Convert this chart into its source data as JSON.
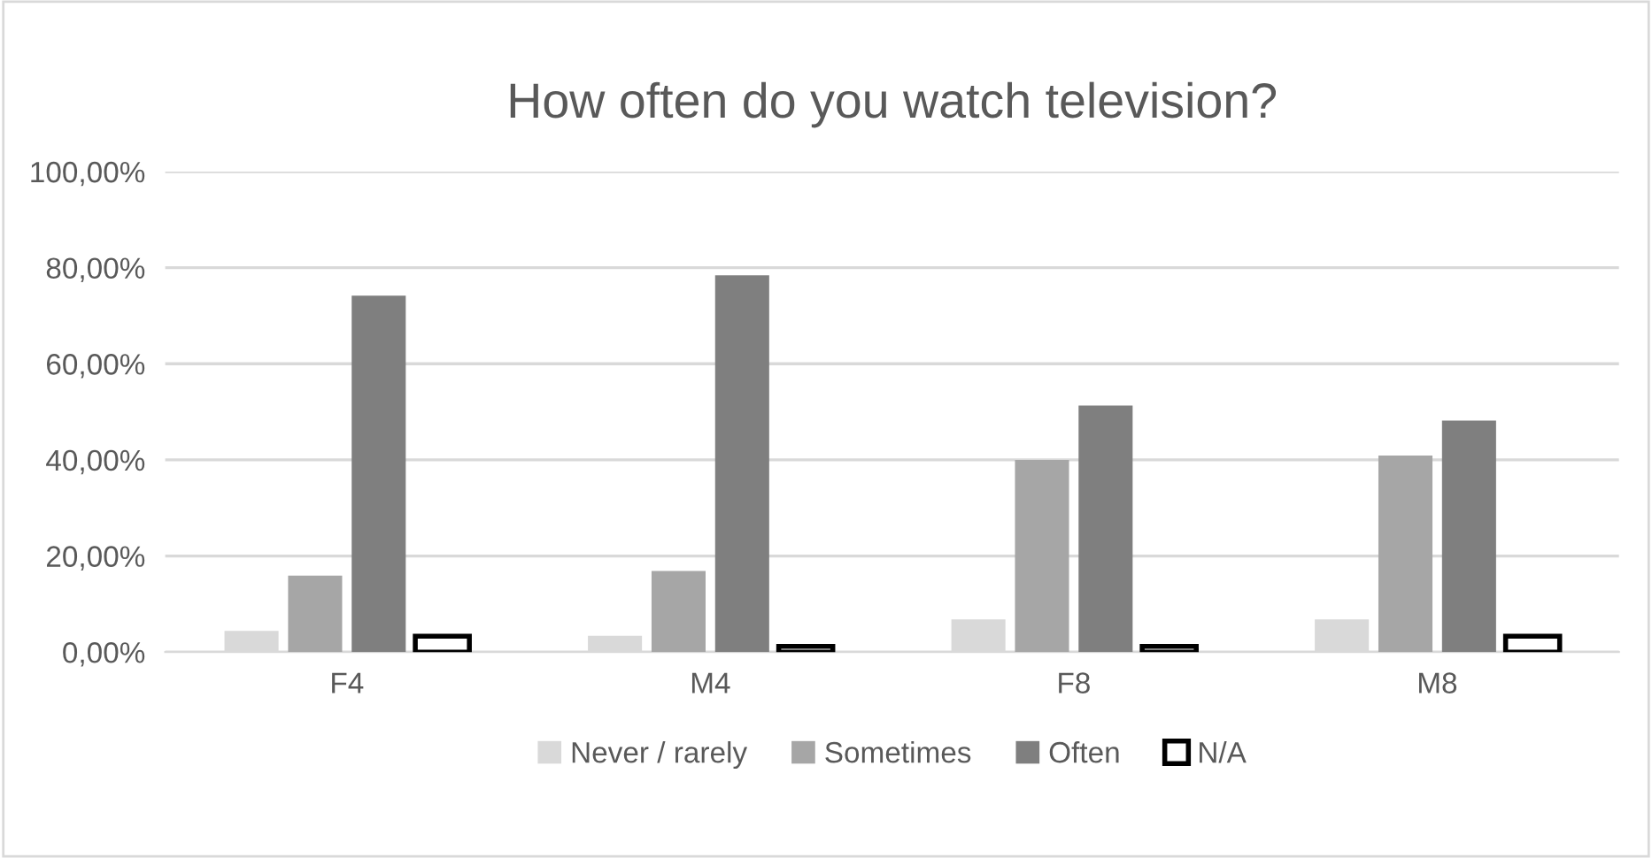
{
  "chart_data": {
    "type": "bar",
    "title": "How often do you watch television?",
    "categories": [
      "F4",
      "M4",
      "F8",
      "M8"
    ],
    "series": [
      {
        "name": "Never / rarely",
        "color": "#d9d9d9",
        "values": [
          4.4,
          3.4,
          6.8,
          6.8
        ]
      },
      {
        "name": "Sometimes",
        "color": "#a6a6a6",
        "values": [
          15.9,
          16.9,
          40.0,
          40.9
        ]
      },
      {
        "name": "Often",
        "color": "#7f7f7f",
        "values": [
          74.2,
          78.4,
          51.3,
          48.2
        ]
      },
      {
        "name": "N/A",
        "color": "#ffffff",
        "values": [
          3.3,
          1.2,
          1.2,
          3.3
        ]
      }
    ],
    "ylim": [
      0,
      100
    ],
    "yticks": [
      {
        "value": 0,
        "label": "0,00%"
      },
      {
        "value": 20,
        "label": "20,00%"
      },
      {
        "value": 40,
        "label": "40,00%"
      },
      {
        "value": 60,
        "label": "60,00%"
      },
      {
        "value": 80,
        "label": "80,00%"
      },
      {
        "value": 100,
        "label": "100,00%"
      }
    ],
    "grid": "y",
    "legend": "bottom"
  }
}
